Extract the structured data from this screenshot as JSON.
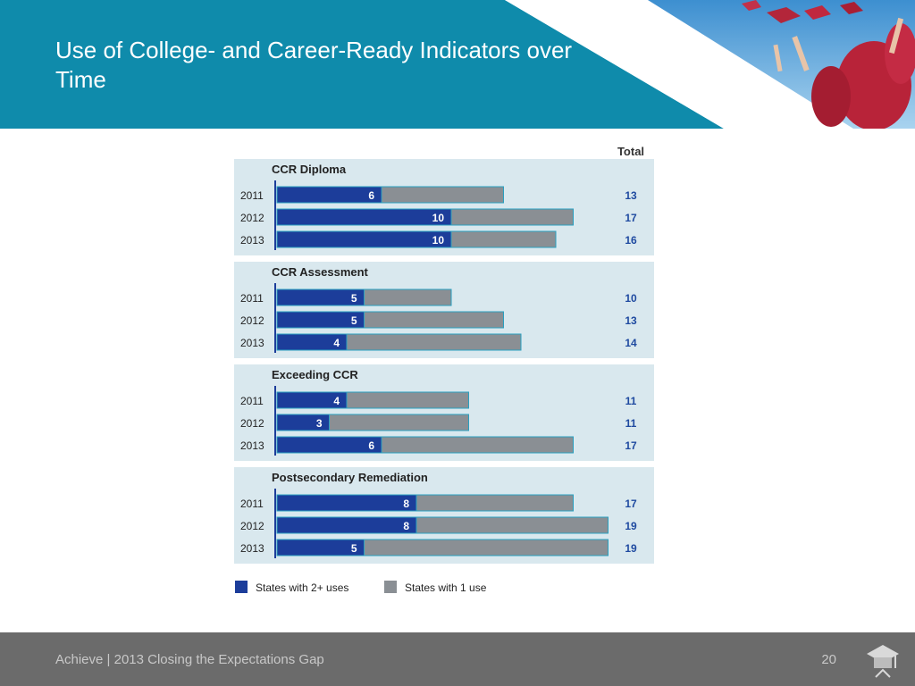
{
  "slide": {
    "title": "Use of College- and Career-Ready Indicators over Time",
    "footer_text": "Achieve | 2013 Closing the Expectations Gap",
    "page_number": "20"
  },
  "colors": {
    "header_teal": "#0f8bab",
    "panel_bg": "#d9e8ee",
    "series_2plus": "#1c3d9a",
    "series_1": "#8a8f94",
    "total_text": "#1f4aa0",
    "footer_bg": "#6b6b6b"
  },
  "icons": {
    "footer_logo": "graduation-cap-icon",
    "header_photo": "graduation-caps-photo"
  },
  "chart_data": {
    "type": "bar",
    "orientation": "horizontal",
    "stacked": true,
    "total_label": "Total",
    "categories": [
      "2011",
      "2012",
      "2013"
    ],
    "groups": [
      {
        "title": "CCR Diploma",
        "rows": [
          {
            "year": "2011",
            "two_plus": 6,
            "one": 7,
            "total": 13
          },
          {
            "year": "2012",
            "two_plus": 10,
            "one": 7,
            "total": 17
          },
          {
            "year": "2013",
            "two_plus": 10,
            "one": 6,
            "total": 16
          }
        ]
      },
      {
        "title": "CCR Assessment",
        "rows": [
          {
            "year": "2011",
            "two_plus": 5,
            "one": 5,
            "total": 10
          },
          {
            "year": "2012",
            "two_plus": 5,
            "one": 8,
            "total": 13
          },
          {
            "year": "2013",
            "two_plus": 4,
            "one": 10,
            "total": 14
          }
        ]
      },
      {
        "title": "Exceeding CCR",
        "rows": [
          {
            "year": "2011",
            "two_plus": 4,
            "one": 7,
            "total": 11
          },
          {
            "year": "2012",
            "two_plus": 3,
            "one": 8,
            "total": 11
          },
          {
            "year": "2013",
            "two_plus": 6,
            "one": 11,
            "total": 17
          }
        ]
      },
      {
        "title": "Postsecondary Remediation",
        "rows": [
          {
            "year": "2011",
            "two_plus": 8,
            "one": 9,
            "total": 17
          },
          {
            "year": "2012",
            "two_plus": 8,
            "one": 11,
            "total": 19
          },
          {
            "year": "2013",
            "two_plus": 5,
            "one": 14,
            "total": 19
          }
        ]
      }
    ],
    "legend": [
      {
        "name": "States with 2+ uses",
        "key": "two_plus"
      },
      {
        "name": "States with 1 use",
        "key": "one"
      }
    ],
    "legend_position": "bottom-left",
    "xlim": [
      0,
      19
    ]
  }
}
